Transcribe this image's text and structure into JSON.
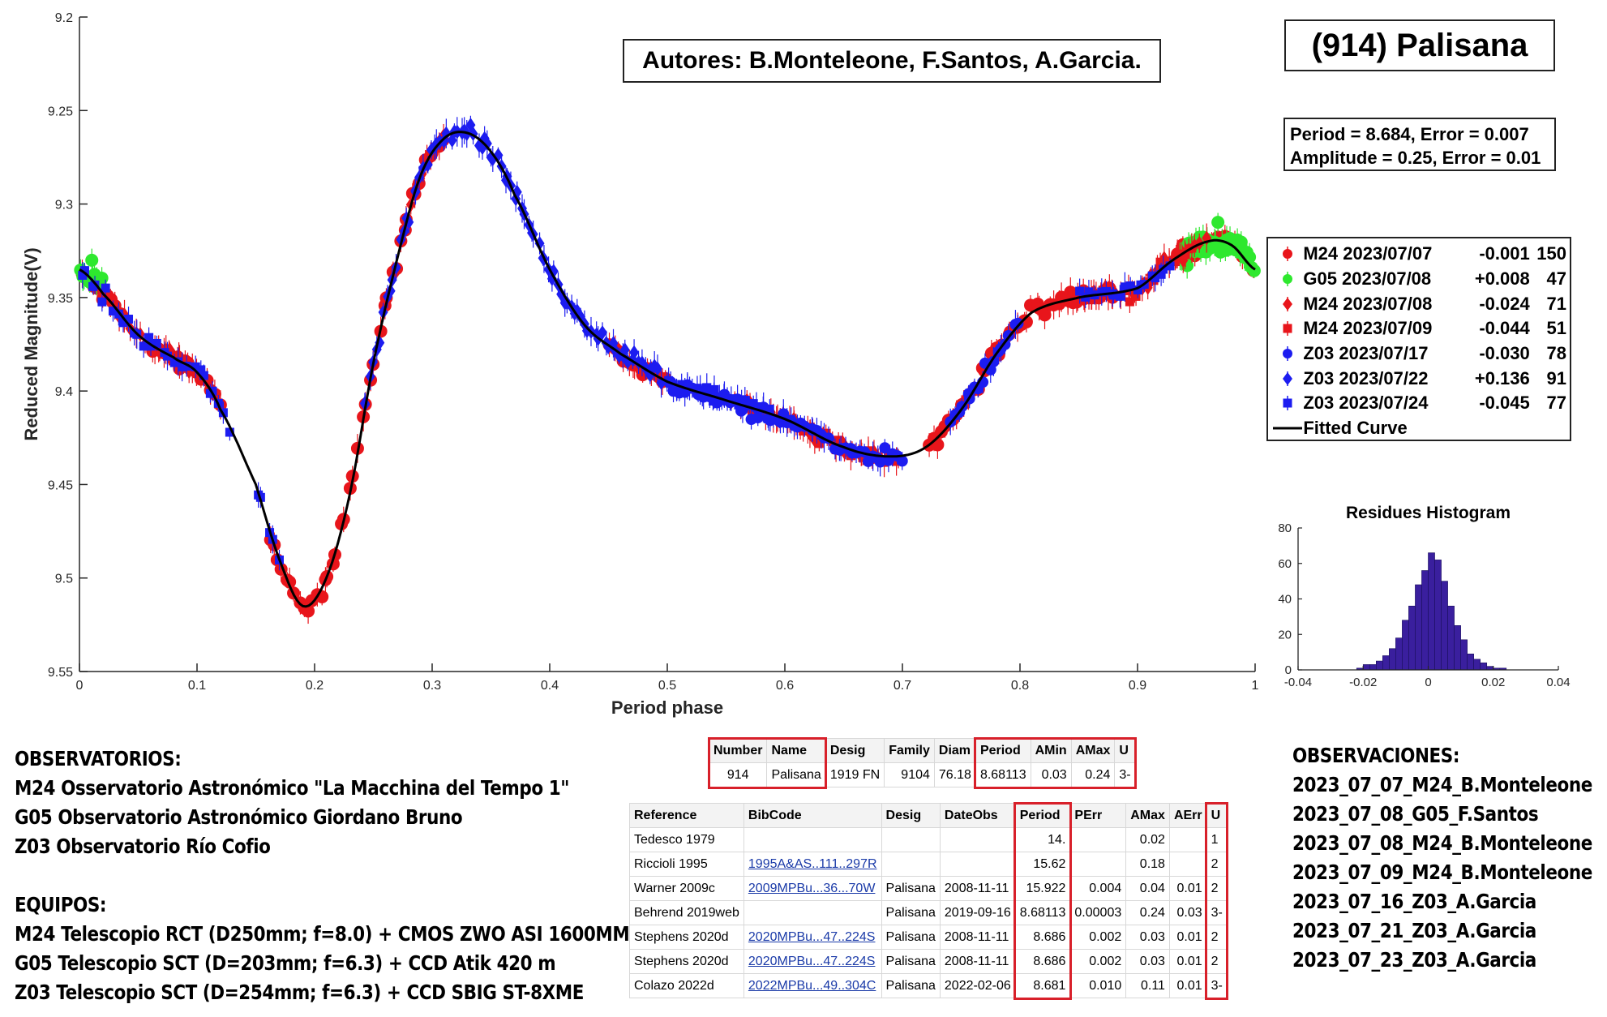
{
  "authors": "Autores: B.Monteleone, F.Santos, A.Garcia.",
  "object_title": "(914) Palisana",
  "period_line": "Period =  8.684, Error = 0.007",
  "amplitude_line": "Amplitude = 0.25, Error = 0.01",
  "legend": [
    {
      "name": "M24 2023/07/07",
      "offset": "-0.001",
      "n": "150",
      "color": "#e8151b",
      "marker": "circle"
    },
    {
      "name": "G05 2023/07/08",
      "offset": "+0.008",
      "n": "47",
      "color": "#2ee82e",
      "marker": "circle"
    },
    {
      "name": "M24 2023/07/08",
      "offset": "-0.024",
      "n": "71",
      "color": "#e8151b",
      "marker": "diamond"
    },
    {
      "name": "M24 2023/07/09",
      "offset": "-0.044",
      "n": "51",
      "color": "#e8151b",
      "marker": "square"
    },
    {
      "name": "Z03 2023/07/17",
      "offset": "-0.030",
      "n": "78",
      "color": "#1c1cf0",
      "marker": "circle"
    },
    {
      "name": "Z03 2023/07/22",
      "offset": "+0.136",
      "n": "91",
      "color": "#1c1cf0",
      "marker": "diamond"
    },
    {
      "name": "Z03 2023/07/24",
      "offset": "-0.045",
      "n": "77",
      "color": "#1c1cf0",
      "marker": "square"
    },
    {
      "name": "Fitted Curve",
      "offset": "",
      "n": "",
      "color": "#000000",
      "marker": "line"
    }
  ],
  "observatorios": {
    "heading": "OBSERVATORIOS:",
    "lines": [
      "M24 Osservatorio Astronómico \"La Macchina del Tempo 1\"",
      "G05 Observatorio Astronómico Giordano Bruno",
      "Z03 Observatorio Río Cofio"
    ],
    "equipos_heading": "EQUIPOS:",
    "equipos": [
      "M24 Telescopio RCT (D250mm; f=8.0) + CMOS ZWO ASI 1600MM",
      "G05 Telescopio SCT (D=203mm; f=6.3) + CCD Atik 420 m",
      "Z03 Telescopio SCT (D=254mm; f=6.3) + CCD SBIG ST-8XME"
    ]
  },
  "observaciones": {
    "heading": "OBSERVACIONES:",
    "lines": [
      "2023_07_07_M24_B.Monteleone",
      "2023_07_08_G05_F.Santos",
      "2023_07_08_M24_B.Monteleone",
      "2023_07_09_M24_B.Monteleone",
      "2023_07_16_Z03_A.Garcia",
      "2023_07_21_Z03_A.Garcia",
      "2023_07_23_Z03_A.Garcia"
    ]
  },
  "table1": {
    "headers": [
      "Number",
      "Name",
      "Desig",
      "Family",
      "Diam",
      "Period",
      "AMin",
      "AMax",
      "U"
    ],
    "row": [
      "914",
      "Palisana",
      "1919 FN",
      "9104",
      "76.18",
      "8.68113",
      "0.03",
      "0.24",
      "3-"
    ]
  },
  "table2": {
    "headers": [
      "Reference",
      "BibCode",
      "Desig",
      "DateObs",
      "Period",
      "PErr",
      "AMax",
      "AErr",
      "U"
    ],
    "rows": [
      [
        "Tedesco 1979",
        "",
        "",
        "",
        "14.",
        "",
        "0.02",
        "",
        "1"
      ],
      [
        "Riccioli 1995",
        "1995A&AS..111..297R",
        "",
        "",
        "15.62",
        "",
        "0.18",
        "",
        "2"
      ],
      [
        "Warner 2009c",
        "2009MPBu...36...70W",
        "Palisana",
        "2008-11-11",
        "15.922",
        "0.004",
        "0.04",
        "0.01",
        "2"
      ],
      [
        "Behrend 2019web",
        "",
        "Palisana",
        "2019-09-16",
        "8.68113",
        "0.00003",
        "0.24",
        "0.03",
        "3-"
      ],
      [
        "Stephens 2020d",
        "2020MPBu...47..224S",
        "Palisana",
        "2008-11-11",
        "8.686",
        "0.002",
        "0.03",
        "0.01",
        "2"
      ],
      [
        "Stephens 2020d",
        "2020MPBu...47..224S",
        "Palisana",
        "2008-11-11",
        "8.686",
        "0.002",
        "0.03",
        "0.01",
        "2"
      ],
      [
        "Colazo 2022d",
        "2022MPBu...49..304C",
        "Palisana",
        "2022-02-06",
        "8.681",
        "0.010",
        "0.11",
        "0.01",
        "3-"
      ]
    ]
  },
  "chart_data": [
    {
      "type": "scatter",
      "xlabel": "Period phase",
      "ylabel": "Reduced Magnitude(V)",
      "xlim": [
        0,
        1
      ],
      "ylim": [
        9.55,
        9.2
      ],
      "y_inverted": true,
      "x_ticks": [
        "0",
        "0.1",
        "0.2",
        "0.3",
        "0.4",
        "0.5",
        "0.6",
        "0.7",
        "0.8",
        "0.9",
        "1"
      ],
      "y_ticks": [
        "9.2",
        "9.25",
        "9.3",
        "9.35",
        "9.4",
        "9.45",
        "9.5",
        "9.55"
      ],
      "fitted_curve": {
        "x": [
          0,
          0.02,
          0.05,
          0.08,
          0.1,
          0.12,
          0.15,
          0.17,
          0.19,
          0.21,
          0.23,
          0.25,
          0.27,
          0.29,
          0.31,
          0.33,
          0.35,
          0.37,
          0.4,
          0.43,
          0.46,
          0.5,
          0.55,
          0.6,
          0.65,
          0.69,
          0.72,
          0.75,
          0.78,
          0.81,
          0.85,
          0.9,
          0.93,
          0.96,
          0.98,
          1.0
        ],
        "y": [
          9.335,
          9.348,
          9.37,
          9.382,
          9.39,
          9.41,
          9.45,
          9.49,
          9.515,
          9.5,
          9.455,
          9.385,
          9.33,
          9.285,
          9.265,
          9.262,
          9.272,
          9.295,
          9.335,
          9.365,
          9.38,
          9.395,
          9.405,
          9.415,
          9.43,
          9.435,
          9.43,
          9.41,
          9.38,
          9.358,
          9.35,
          9.345,
          9.33,
          9.32,
          9.322,
          9.335
        ]
      },
      "series": [
        {
          "name": "M24 2023/07/07",
          "offset": -0.001,
          "n": 150,
          "color": "#e8151b",
          "marker": "circle",
          "ranges": [
            [
              0.0,
              0.04
            ],
            [
              0.06,
              0.12
            ],
            [
              0.16,
              0.31
            ],
            [
              0.45,
              0.5
            ],
            [
              0.72,
              0.88
            ],
            [
              0.93,
              1.0
            ]
          ]
        },
        {
          "name": "G05 2023/07/08",
          "offset": 0.008,
          "n": 47,
          "color": "#2ee82e",
          "marker": "circle",
          "ranges": [
            [
              0.0,
              0.02
            ],
            [
              0.935,
              1.0
            ]
          ]
        },
        {
          "name": "M24 2023/07/08",
          "offset": -0.024,
          "n": 71,
          "color": "#e8151b",
          "marker": "diamond",
          "ranges": [
            [
              0.02,
              0.1
            ],
            [
              0.28,
              0.31
            ],
            [
              0.55,
              0.68
            ],
            [
              0.84,
              0.96
            ]
          ]
        },
        {
          "name": "M24 2023/07/09",
          "offset": -0.044,
          "n": 51,
          "color": "#e8151b",
          "marker": "square",
          "ranges": [
            [
              0.57,
              0.7
            ],
            [
              0.86,
              0.95
            ]
          ]
        },
        {
          "name": "Z03 2023/07/17",
          "offset": -0.03,
          "n": 78,
          "color": "#1c1cf0",
          "marker": "circle",
          "ranges": [
            [
              0.5,
              0.7
            ],
            [
              0.74,
              0.8
            ]
          ]
        },
        {
          "name": "Z03 2023/07/22",
          "offset": 0.136,
          "n": 91,
          "color": "#1c1cf0",
          "marker": "diamond",
          "ranges": [
            [
              0.24,
              0.42
            ],
            [
              0.42,
              0.5
            ]
          ]
        },
        {
          "name": "Z03 2023/07/24",
          "offset": -0.045,
          "n": 77,
          "color": "#1c1cf0",
          "marker": "square",
          "ranges": [
            [
              0.0,
              0.13
            ],
            [
              0.15,
              0.17
            ],
            [
              0.5,
              0.6
            ],
            [
              0.85,
              0.93
            ]
          ]
        }
      ]
    },
    {
      "type": "bar",
      "title": "Residues Histogram",
      "xlim": [
        -0.04,
        0.04
      ],
      "ylim": [
        0,
        80
      ],
      "x_ticks": [
        "-0.04",
        "-0.02",
        "0",
        "0.02",
        "0.04"
      ],
      "y_ticks": [
        "0",
        "20",
        "40",
        "60",
        "80"
      ],
      "bin_width": 0.002,
      "bin_starts": [
        -0.022,
        -0.02,
        -0.018,
        -0.016,
        -0.014,
        -0.012,
        -0.01,
        -0.008,
        -0.006,
        -0.004,
        -0.002,
        0.0,
        0.002,
        0.004,
        0.006,
        0.008,
        0.01,
        0.012,
        0.014,
        0.016,
        0.018,
        0.02,
        0.022
      ],
      "counts": [
        1,
        3,
        3,
        5,
        8,
        12,
        18,
        28,
        36,
        48,
        56,
        66,
        62,
        50,
        36,
        25,
        17,
        9,
        6,
        4,
        2,
        1,
        1
      ],
      "color": "#3a1f9e"
    }
  ]
}
